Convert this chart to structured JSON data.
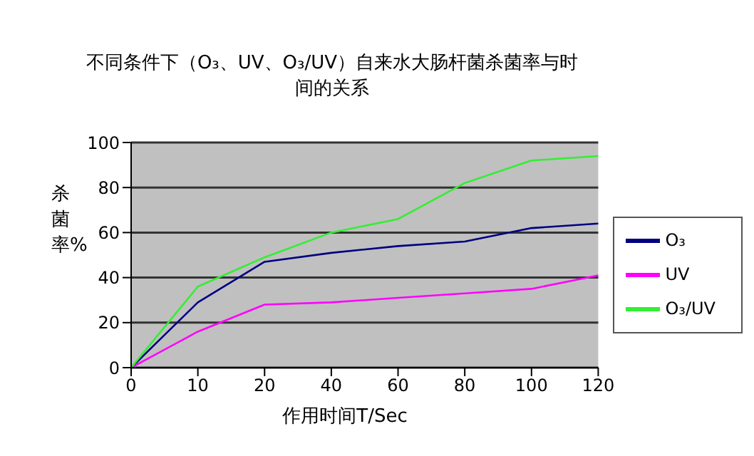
{
  "chart_data": {
    "type": "line",
    "title": "不同条件下（O₃、UV、O₃/UV）自来水大肠杆菌杀菌率与时间的关系",
    "xlabel": "作用时间T/Sec",
    "ylabel": "杀菌率%",
    "categories": [
      "0",
      "10",
      "20",
      "40",
      "60",
      "80",
      "100",
      "120"
    ],
    "series": [
      {
        "name": "O₃",
        "color": "#000080",
        "values": [
          0,
          29,
          47,
          51,
          54,
          56,
          62,
          64
        ]
      },
      {
        "name": "UV",
        "color": "#ff00ff",
        "values": [
          0,
          16,
          28,
          29,
          31,
          33,
          35,
          41
        ]
      },
      {
        "name": "O₃/UV",
        "color": "#33ee33",
        "values": [
          0,
          36,
          49,
          60,
          66,
          82,
          92,
          94
        ]
      }
    ],
    "ylim": [
      0,
      100
    ],
    "yticks": [
      0,
      20,
      40,
      60,
      80,
      100
    ],
    "grid": "y",
    "legend": "right",
    "marker": "none"
  }
}
